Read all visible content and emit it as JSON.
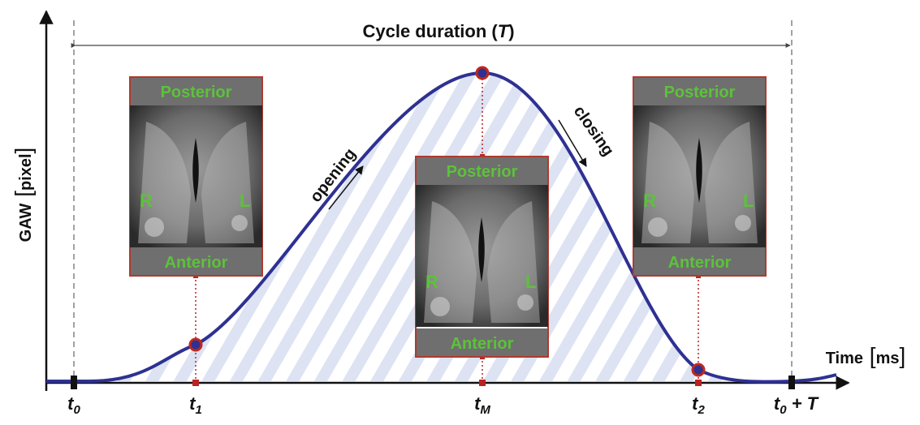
{
  "y_label": {
    "name": "GAW",
    "unit": "pixel"
  },
  "x_label": {
    "name": "Time",
    "unit": "ms"
  },
  "cycle_label": {
    "text": "Cycle duration (",
    "symbol": "T",
    "close": ")"
  },
  "time_points": [
    {
      "base": "t",
      "sub": "0"
    },
    {
      "base": "t",
      "sub": "1"
    },
    {
      "base": "t",
      "sub": "M"
    },
    {
      "base": "t",
      "sub": "2"
    },
    {
      "base": "t",
      "sub": "0",
      "suffix": " + T"
    }
  ],
  "phases": {
    "opening": "opening",
    "closing": "closing"
  },
  "panels": [
    {
      "top": "Posterior",
      "bottom": "Anterior",
      "left": "R",
      "right": "L"
    },
    {
      "top": "Posterior",
      "bottom": "Anterior",
      "left": "R",
      "right": "L"
    },
    {
      "top": "Posterior",
      "bottom": "Anterior",
      "left": "R",
      "right": "L"
    }
  ]
}
